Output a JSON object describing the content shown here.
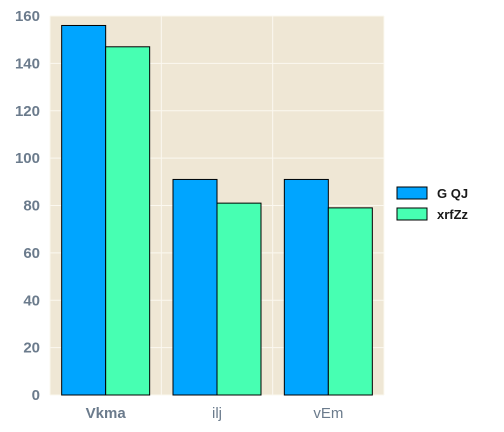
{
  "chart_data": {
    "type": "bar",
    "categories": [
      "Vkma",
      "ilj",
      "vEm"
    ],
    "bold_categories": [
      "Vkma"
    ],
    "series": [
      {
        "name": "G QJ",
        "values": [
          156,
          91,
          91
        ],
        "color": "#00a5ff"
      },
      {
        "name": "xrfZz",
        "values": [
          147,
          81,
          79
        ],
        "color": "#47ffb2"
      }
    ],
    "ylim": [
      0,
      160
    ],
    "yticks": [
      "0",
      "20",
      "40",
      "60",
      "80",
      "100",
      "120",
      "140",
      "160"
    ],
    "grid": true,
    "legend_position": "right",
    "plot_background": "#efe7d5",
    "grid_color": "#fbf8f0",
    "title": "",
    "xlabel": "",
    "ylabel": ""
  }
}
